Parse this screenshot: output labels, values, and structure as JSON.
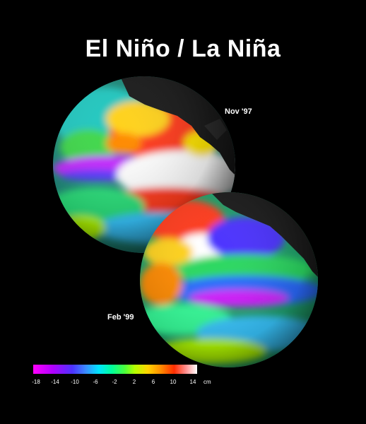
{
  "title": "El Niño / La Niña",
  "globes": [
    {
      "date_label": "Nov '97"
    },
    {
      "date_label": "Feb '99"
    }
  ],
  "legend": {
    "ticks": [
      "-18",
      "-14",
      "-10",
      "-6",
      "-2",
      "2",
      "6",
      "10",
      "14"
    ],
    "unit": "cm"
  },
  "colors": {
    "background": "#000000",
    "land": "#1a1a1a",
    "scale_low": "#ff00ff",
    "scale_high": "#ffffff"
  }
}
